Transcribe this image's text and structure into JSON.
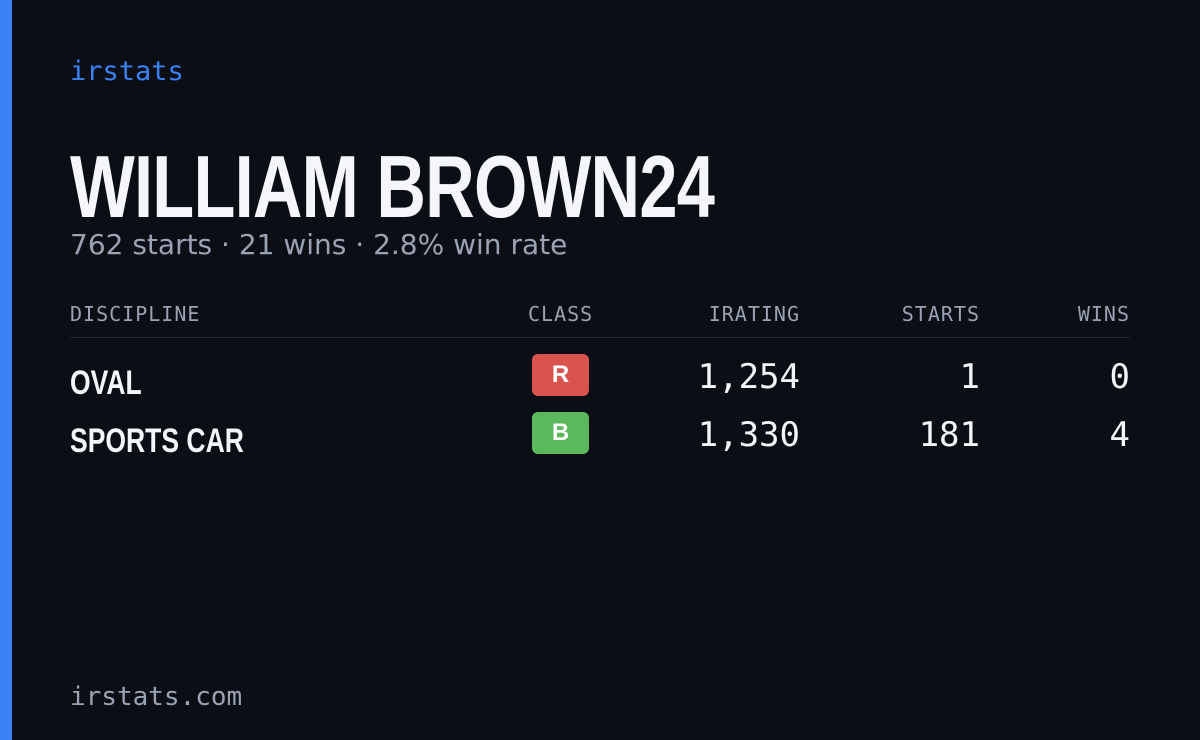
{
  "brand": "irstats",
  "profile": {
    "name": "WILLIAM BROWN24",
    "summary": "762 starts · 21 wins · 2.8% win rate"
  },
  "table": {
    "headers": [
      "DISCIPLINE",
      "CLASS",
      "IRATING",
      "STARTS",
      "WINS"
    ],
    "rows": [
      [
        "OVAL",
        "R",
        "1,254",
        1,
        0
      ],
      [
        "SPORTS CAR",
        "B",
        "1,330",
        181,
        4
      ]
    ]
  },
  "footer": "irstats.com"
}
